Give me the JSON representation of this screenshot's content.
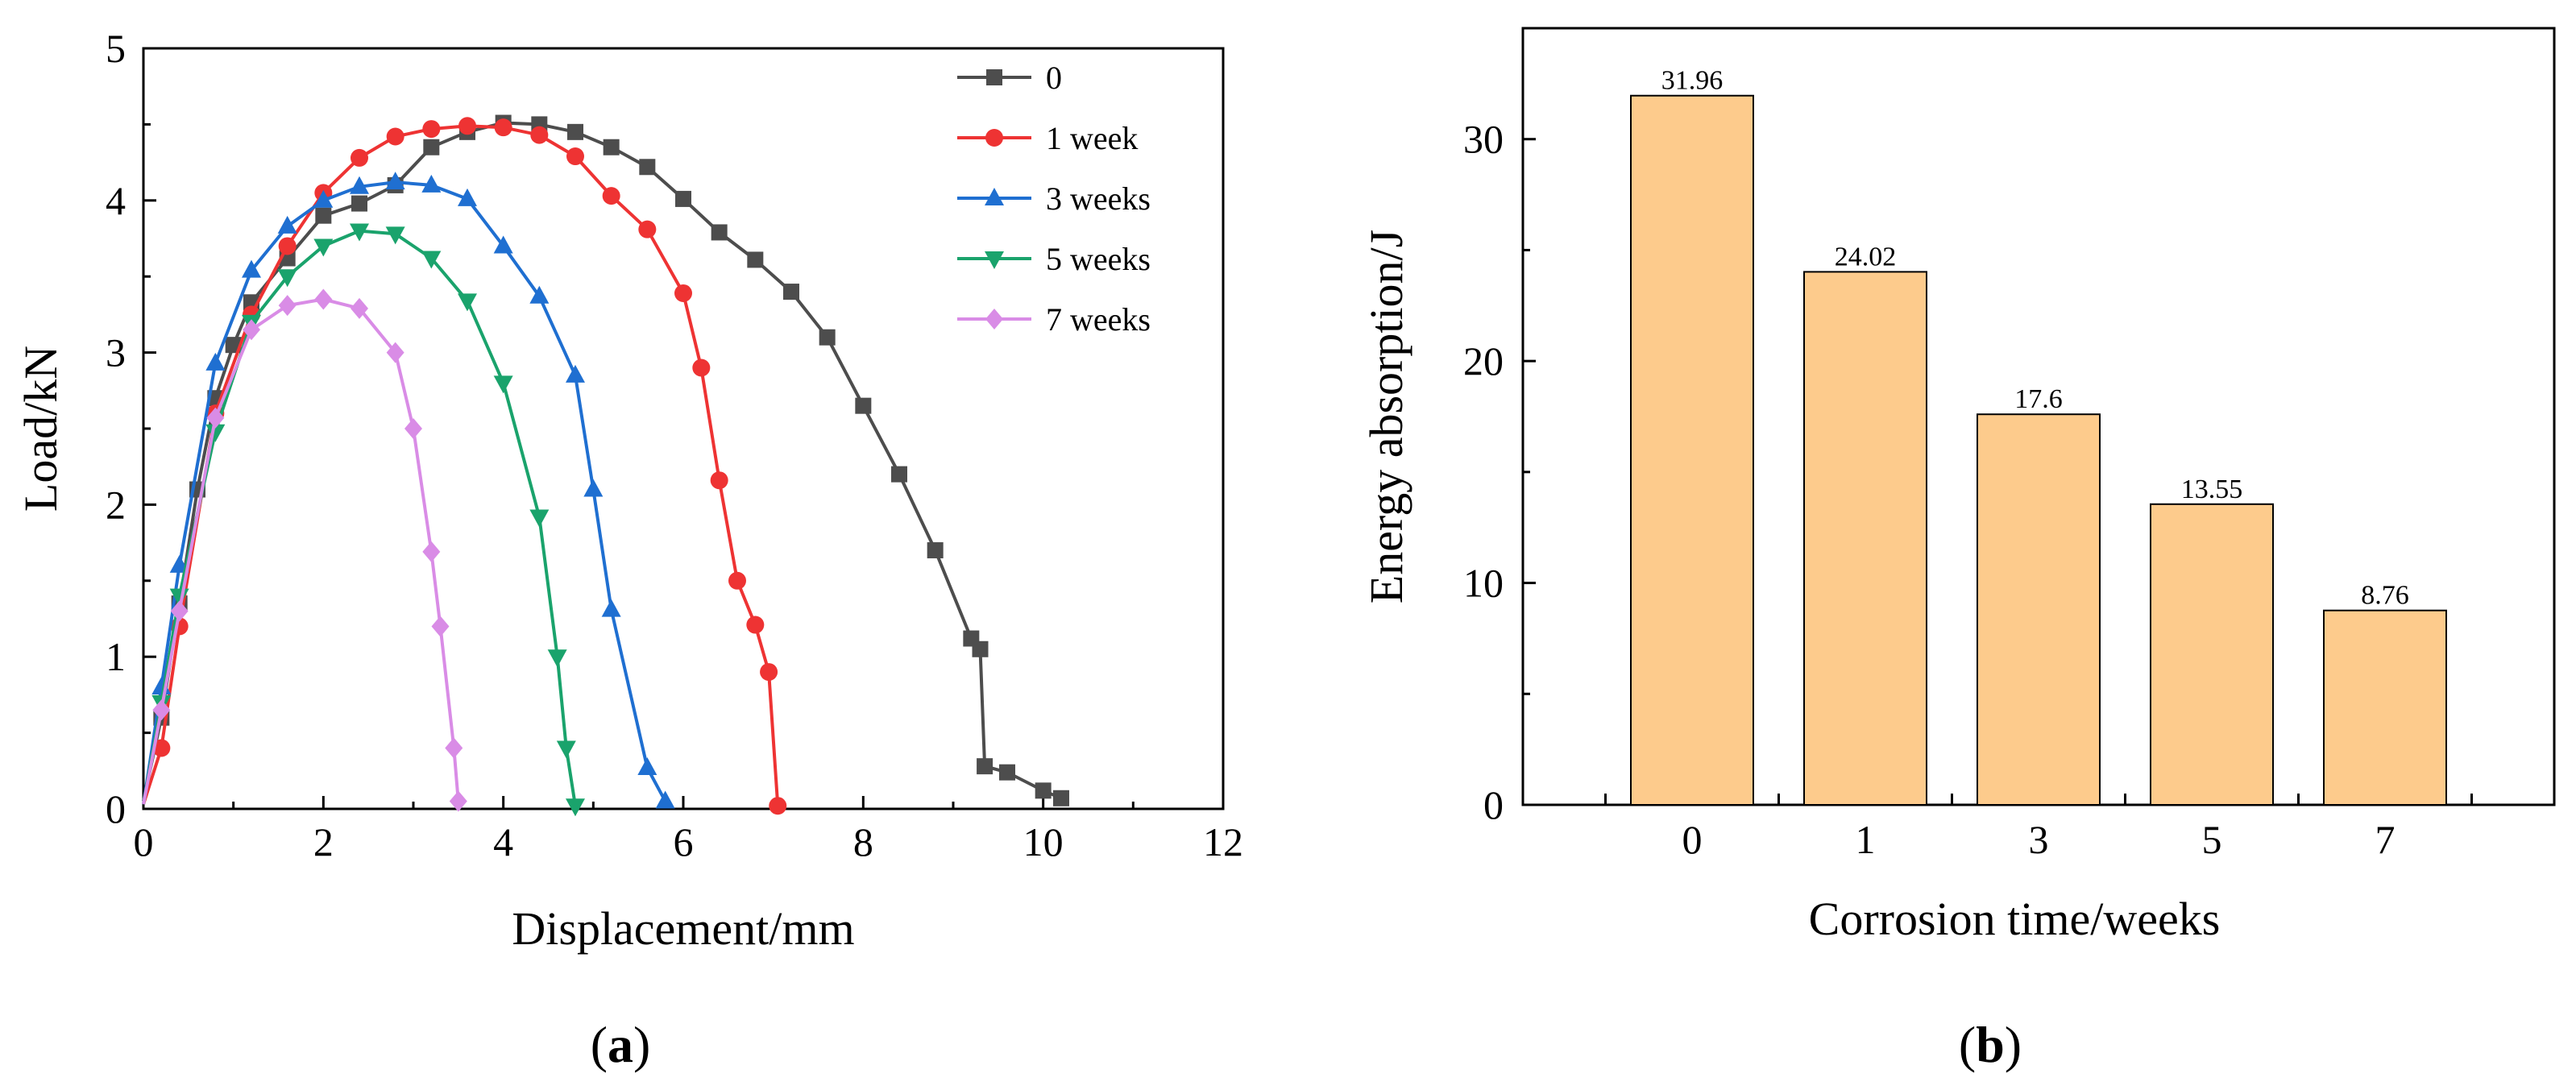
{
  "chart_data": [
    {
      "type": "line",
      "xlabel": "Displacement/mm",
      "ylabel": "Load/kN",
      "xlim": [
        0,
        12
      ],
      "ylim": [
        0,
        5
      ],
      "xticks": [
        "0",
        "2",
        "4",
        "6",
        "8",
        "10",
        "12"
      ],
      "yticks": [
        "0",
        "1",
        "2",
        "3",
        "4",
        "5"
      ],
      "panel_label": "(a)",
      "panel_letter": "a",
      "legend_position": "top-right",
      "series": [
        {
          "name": "0",
          "color": "#4d4d4d",
          "marker": "square",
          "x": [
            0,
            0.2,
            0.4,
            0.6,
            0.8,
            1.0,
            1.2,
            1.6,
            2.0,
            2.4,
            2.8,
            3.2,
            3.6,
            4.0,
            4.4,
            4.8,
            5.2,
            5.6,
            6.0,
            6.4,
            6.8,
            7.2,
            7.6,
            8.0,
            8.4,
            8.8,
            9.2,
            9.3,
            9.35,
            9.6,
            10.0,
            10.2
          ],
          "y": [
            0.05,
            0.6,
            1.35,
            2.1,
            2.7,
            3.05,
            3.33,
            3.62,
            3.9,
            3.98,
            4.1,
            4.35,
            4.45,
            4.51,
            4.5,
            4.45,
            4.35,
            4.22,
            4.01,
            3.79,
            3.61,
            3.4,
            3.1,
            2.65,
            2.2,
            1.7,
            1.12,
            1.05,
            0.28,
            0.24,
            0.12,
            0.07
          ]
        },
        {
          "name": "1 week",
          "color": "#ee3333",
          "marker": "circle",
          "x": [
            0,
            0.2,
            0.4,
            0.8,
            1.2,
            1.6,
            2.0,
            2.4,
            2.8,
            3.2,
            3.6,
            4.0,
            4.4,
            4.8,
            5.2,
            5.6,
            6.0,
            6.2,
            6.4,
            6.6,
            6.8,
            6.95,
            7.05
          ],
          "y": [
            0.03,
            0.4,
            1.2,
            2.6,
            3.25,
            3.7,
            4.05,
            4.28,
            4.42,
            4.47,
            4.49,
            4.48,
            4.43,
            4.29,
            4.03,
            3.81,
            3.39,
            2.9,
            2.16,
            1.5,
            1.21,
            0.9,
            0.02
          ]
        },
        {
          "name": "3 weeks",
          "color": "#1f6fd1",
          "marker": "triangle-up",
          "x": [
            0,
            0.2,
            0.4,
            0.8,
            1.2,
            1.6,
            2.0,
            2.4,
            2.8,
            3.2,
            3.6,
            4.0,
            4.4,
            4.8,
            5.0,
            5.2,
            5.6,
            5.8
          ],
          "y": [
            0.03,
            0.8,
            1.6,
            2.93,
            3.54,
            3.83,
            4.0,
            4.09,
            4.12,
            4.1,
            4.01,
            3.7,
            3.37,
            2.85,
            2.1,
            1.31,
            0.27,
            0.05
          ]
        },
        {
          "name": "5 weeks",
          "color": "#1aa36c",
          "marker": "triangle-down",
          "x": [
            0,
            0.2,
            0.4,
            0.8,
            1.2,
            1.6,
            2.0,
            2.4,
            2.8,
            3.2,
            3.6,
            4.0,
            4.4,
            4.6,
            4.7,
            4.8
          ],
          "y": [
            0.03,
            0.7,
            1.4,
            2.48,
            3.2,
            3.5,
            3.7,
            3.8,
            3.78,
            3.62,
            3.34,
            2.8,
            1.92,
            1.0,
            0.4,
            0.02
          ]
        },
        {
          "name": "7 weeks",
          "color": "#d98ce6",
          "marker": "diamond",
          "x": [
            0,
            0.2,
            0.4,
            0.8,
            1.2,
            1.6,
            2.0,
            2.4,
            2.8,
            3.0,
            3.2,
            3.3,
            3.45,
            3.5
          ],
          "y": [
            0.03,
            0.65,
            1.3,
            2.57,
            3.15,
            3.31,
            3.35,
            3.29,
            3.0,
            2.5,
            1.69,
            1.2,
            0.4,
            0.05
          ]
        }
      ]
    },
    {
      "type": "bar",
      "xlabel": "Corrosion time/weeks",
      "ylabel": "Energy absorption/J",
      "categories": [
        "0",
        "1",
        "3",
        "5",
        "7"
      ],
      "values": [
        31.96,
        24.02,
        17.6,
        13.55,
        8.76
      ],
      "data_labels": [
        "31.96",
        "24.02",
        "17.6",
        "13.55",
        "8.76"
      ],
      "ylim": [
        0,
        35
      ],
      "yticks": [
        "0",
        "10",
        "20",
        "30"
      ],
      "bar_color": "#fdcb8c",
      "panel_label": "(b)",
      "panel_letter": "b"
    }
  ]
}
